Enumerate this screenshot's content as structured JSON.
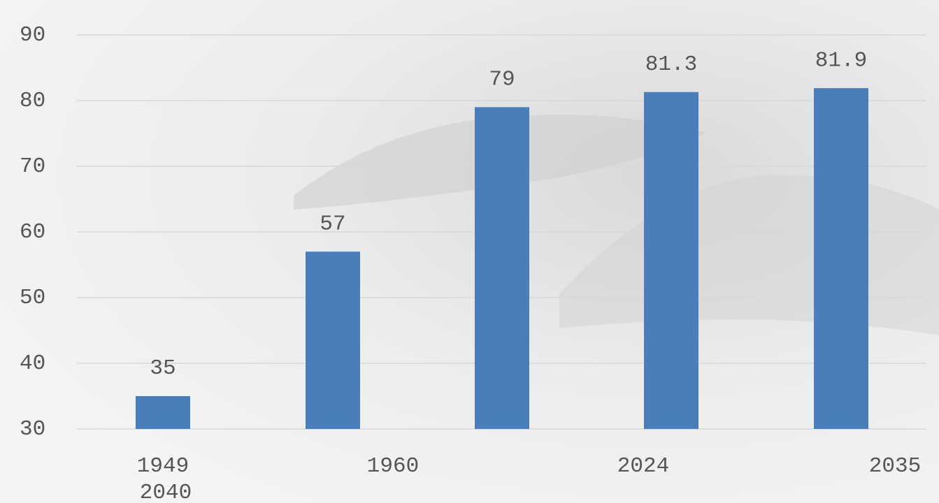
{
  "chart_data": {
    "type": "bar",
    "categories": [
      "1949",
      "1960",
      "2024",
      "2035",
      "2040"
    ],
    "values": [
      35,
      57,
      79,
      81.3,
      81.9
    ],
    "color": "#4a7ebb",
    "ylim": [
      30,
      90
    ],
    "yticks": [
      30,
      40,
      50,
      60,
      70,
      80,
      90
    ],
    "grid": true
  }
}
